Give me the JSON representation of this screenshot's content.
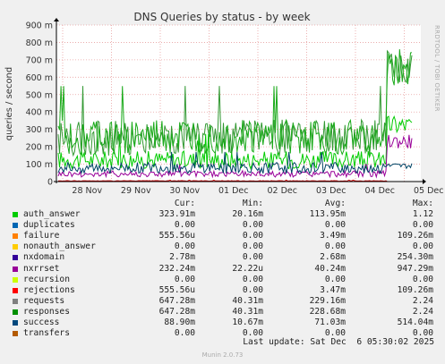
{
  "chart_data": {
    "type": "line",
    "title": "DNS Queries by status - by week",
    "ylabel": "queries / second",
    "ylim": [
      0,
      900
    ],
    "yticks": [
      "0",
      "100 m",
      "200 m",
      "300 m",
      "400 m",
      "500 m",
      "600 m",
      "700 m",
      "800 m",
      "900 m"
    ],
    "ytick_values": [
      0,
      100,
      200,
      300,
      400,
      500,
      600,
      700,
      800,
      900
    ],
    "xticks": [
      "28 Nov",
      "29 Nov",
      "30 Nov",
      "01 Dec",
      "02 Dec",
      "03 Dec",
      "04 Dec",
      "05 Dec"
    ],
    "grid": true,
    "side_label": "RRDTOOL / TOBI OETIKER",
    "series": [
      {
        "name": "auth_answer",
        "color": "#00cc00",
        "cur": 323.91,
        "min": 20.16,
        "avg": 113.95,
        "max": 1120
      },
      {
        "name": "nxrrset",
        "color": "#990099",
        "cur": 232.24,
        "min": 0.02222,
        "avg": 40.24,
        "max": 947.29
      },
      {
        "name": "rejections",
        "color": "#cc0000",
        "cur": 0.000556,
        "min": 0,
        "avg": 3.47,
        "max": 109.26
      },
      {
        "name": "requests",
        "color": "#339933",
        "cur": 647.28,
        "min": 40.31,
        "avg": 229.16,
        "max": 2240
      },
      {
        "name": "responses",
        "color": "#1aaa1a",
        "cur": 647.28,
        "min": 40.31,
        "avg": 228.68,
        "max": 2240
      },
      {
        "name": "success",
        "color": "#004466",
        "cur": 88.9,
        "min": 10.67,
        "avg": 71.03,
        "max": 514.04
      }
    ]
  },
  "legend": {
    "headers": {
      "cur": "Cur:",
      "min": "Min:",
      "avg": "Avg:",
      "max": "Max:"
    },
    "rows": [
      {
        "name": "auth_answer",
        "color": "#00cc00",
        "cur": "323.91m",
        "min": "20.16m",
        "avg": "113.95m",
        "max": "1.12"
      },
      {
        "name": "duplicates",
        "color": "#0066b3",
        "cur": "0.00",
        "min": "0.00",
        "avg": "0.00",
        "max": "0.00"
      },
      {
        "name": "failure",
        "color": "#ff8000",
        "cur": "555.56u",
        "min": "0.00",
        "avg": "3.49m",
        "max": "109.26m"
      },
      {
        "name": "nonauth_answer",
        "color": "#ffcc00",
        "cur": "0.00",
        "min": "0.00",
        "avg": "0.00",
        "max": "0.00"
      },
      {
        "name": "nxdomain",
        "color": "#330099",
        "cur": "2.78m",
        "min": "0.00",
        "avg": "2.68m",
        "max": "254.30m"
      },
      {
        "name": "nxrrset",
        "color": "#990099",
        "cur": "232.24m",
        "min": "22.22u",
        "avg": "40.24m",
        "max": "947.29m"
      },
      {
        "name": "recursion",
        "color": "#ccff00",
        "cur": "0.00",
        "min": "0.00",
        "avg": "0.00",
        "max": "0.00"
      },
      {
        "name": "rejections",
        "color": "#ff0000",
        "cur": "555.56u",
        "min": "0.00",
        "avg": "3.47m",
        "max": "109.26m"
      },
      {
        "name": "requests",
        "color": "#808080",
        "cur": "647.28m",
        "min": "40.31m",
        "avg": "229.16m",
        "max": "2.24"
      },
      {
        "name": "responses",
        "color": "#008f00",
        "cur": "647.28m",
        "min": "40.31m",
        "avg": "228.68m",
        "max": "2.24"
      },
      {
        "name": "success",
        "color": "#00487d",
        "cur": "88.90m",
        "min": "10.67m",
        "avg": "71.03m",
        "max": "514.04m"
      },
      {
        "name": "transfers",
        "color": "#b35a00",
        "cur": "0.00",
        "min": "0.00",
        "avg": "0.00",
        "max": "0.00"
      }
    ]
  },
  "last_update": "Last update: Sat Dec  6 05:30:02 2025",
  "footer": "Munin 2.0.73"
}
